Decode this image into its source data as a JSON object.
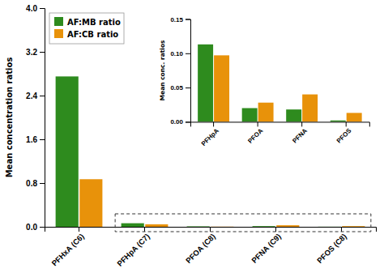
{
  "chart_data": [
    {
      "type": "bar",
      "categories": [
        "PFHxA (C6)",
        "PFHpA (C7)",
        "PFOA (C8)",
        "PFNA (C9)",
        "PFOS (C8)"
      ],
      "series": [
        {
          "name": "AF:MB ratio",
          "color": "#2e8b1e",
          "values": [
            2.75,
            0.065,
            0.008,
            0.012,
            0.002
          ]
        },
        {
          "name": "AF:CB ratio",
          "color": "#e8920a",
          "values": [
            0.87,
            0.045,
            0.003,
            0.028,
            0.012
          ]
        }
      ],
      "y_label": "Mean concentration ratios",
      "ylim": [
        0,
        4.0
      ],
      "yticks": [
        {
          "value": 0.0,
          "label": "0.0"
        },
        0.8,
        1.6,
        2.4,
        3.2,
        {
          "value": 4.0,
          "label": "4.0"
        }
      ],
      "legend": "upper left",
      "grid": false
    },
    {
      "type": "bar",
      "categories": [
        "PFHpA",
        "PFOA",
        "PFNA",
        "PFOS"
      ],
      "series": [
        {
          "color": "#2e8b1e",
          "values": [
            0.113,
            0.02,
            0.018,
            0.002
          ]
        },
        {
          "color": "#e8920a",
          "values": [
            0.097,
            0.028,
            0.04,
            0.013
          ]
        }
      ],
      "y_label": "Mean conc. ratios",
      "ylim": [
        0,
        0.15
      ],
      "yticks": [
        {
          "value": 0.0,
          "label": "0.00"
        },
        {
          "value": 0.05,
          "label": "0.05"
        },
        {
          "value": 0.1,
          "label": "0.10"
        },
        {
          "value": 0.15,
          "label": "0.15"
        }
      ],
      "grid": false
    }
  ]
}
